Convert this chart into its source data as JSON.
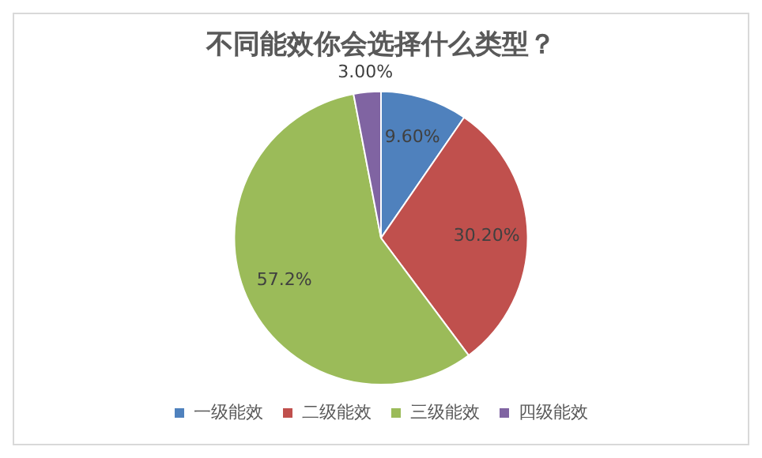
{
  "chart_data": {
    "type": "pie",
    "title": "不同能效你会选择什么类型？",
    "categories": [
      "一级能效",
      "二级能效",
      "三级能效",
      "四级能效"
    ],
    "values": [
      9.6,
      30.2,
      57.2,
      3.0
    ],
    "value_labels": [
      "9.60%",
      "30.20%",
      "57.2%",
      "3.00%"
    ],
    "colors": [
      "#4f81bd",
      "#c0504d",
      "#9bbb59",
      "#8064a2"
    ],
    "legend": "bottom"
  }
}
